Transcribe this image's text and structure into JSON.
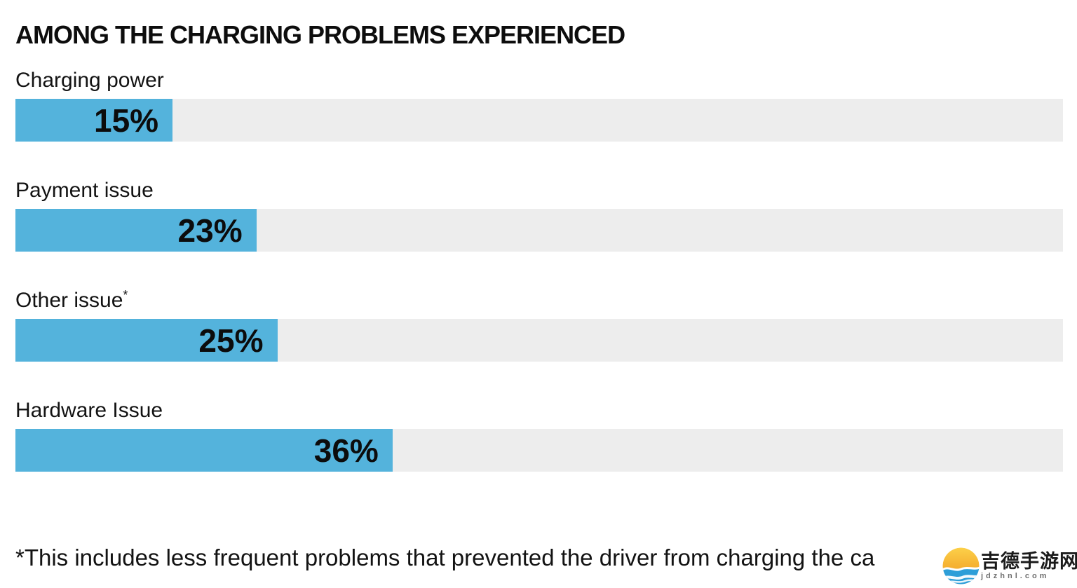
{
  "title": "AMONG THE CHARGING PROBLEMS EXPERIENCED",
  "chart_data": {
    "type": "bar",
    "orientation": "horizontal",
    "title": "AMONG THE CHARGING PROBLEMS EXPERIENCED",
    "categories": [
      "Charging power",
      "Payment issue",
      "Other issue*",
      "Hardware Issue"
    ],
    "values": [
      15,
      23,
      25,
      36
    ],
    "value_labels": [
      "15%",
      "23%",
      "25%",
      "36%"
    ],
    "xlim": [
      0,
      100
    ],
    "grid": false,
    "legend": false,
    "bar_color": "#54B3DC",
    "track_color": "#EDEDED",
    "rows": [
      {
        "label": "Charging power",
        "sup": "",
        "value": 15,
        "value_label": "15%"
      },
      {
        "label": "Payment issue",
        "sup": "",
        "value": 23,
        "value_label": "23%"
      },
      {
        "label": "Other issue",
        "sup": "*",
        "value": 25,
        "value_label": "25%"
      },
      {
        "label": "Hardware Issue",
        "sup": "",
        "value": 36,
        "value_label": "36%"
      }
    ]
  },
  "footnote": "*This includes less frequent problems that prevented the driver from charging the ca",
  "watermark": {
    "site_name": "吉德手游网",
    "site_url": "jdzhnl.com",
    "sun_color": "#F5A21F",
    "wave_color": "#2D9ED8"
  }
}
